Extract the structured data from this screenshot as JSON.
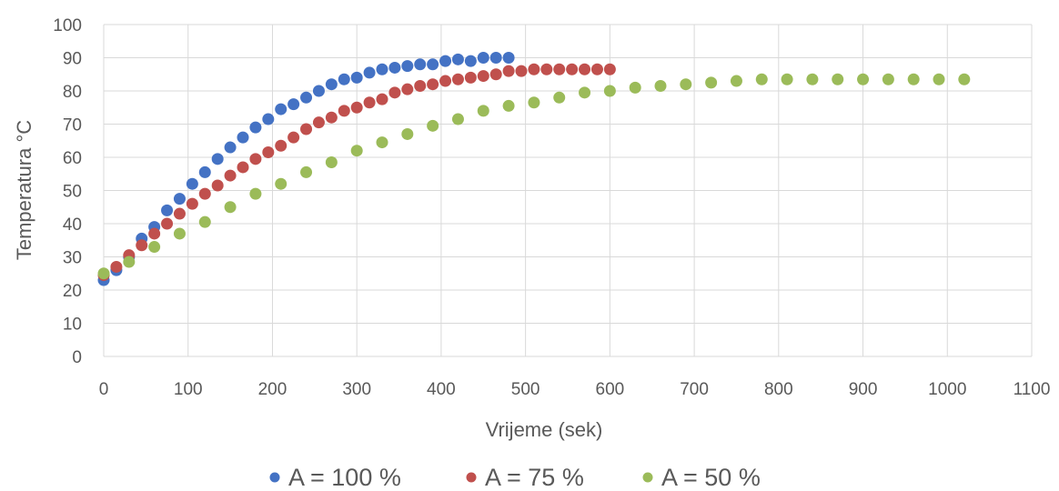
{
  "chart_data": {
    "type": "scatter",
    "title": "",
    "xlabel": "Vrijeme (sek)",
    "ylabel": "Temperatura °C",
    "xlim": [
      0,
      1100
    ],
    "ylim": [
      0,
      100
    ],
    "xticks": [
      0,
      100,
      200,
      300,
      400,
      500,
      600,
      700,
      800,
      900,
      1000,
      1100
    ],
    "yticks": [
      0,
      10,
      20,
      30,
      40,
      50,
      60,
      70,
      80,
      90,
      100
    ],
    "grid": true,
    "legend_position": "bottom",
    "series": [
      {
        "name": "A = 100 %",
        "color": "#4472c4",
        "x": [
          0,
          15,
          30,
          45,
          60,
          75,
          90,
          105,
          120,
          135,
          150,
          165,
          180,
          195,
          210,
          225,
          240,
          255,
          270,
          285,
          300,
          315,
          330,
          345,
          360,
          375,
          390,
          405,
          420,
          435,
          450,
          465,
          480
        ],
        "y": [
          23,
          26,
          30,
          35.5,
          39,
          44,
          47.5,
          52,
          55.5,
          59.5,
          63,
          66,
          69,
          71.5,
          74.5,
          76,
          78,
          80,
          82,
          83.5,
          84,
          85.5,
          86.5,
          87,
          87.5,
          88,
          88,
          89,
          89.5,
          89,
          90,
          90,
          90
        ]
      },
      {
        "name": "A = 75 %",
        "color": "#c0504d",
        "x": [
          0,
          15,
          30,
          45,
          60,
          75,
          90,
          105,
          120,
          135,
          150,
          165,
          180,
          195,
          210,
          225,
          240,
          255,
          270,
          285,
          300,
          315,
          330,
          345,
          360,
          375,
          390,
          405,
          420,
          435,
          450,
          465,
          480,
          495,
          510,
          525,
          540,
          555,
          570,
          585,
          600
        ],
        "y": [
          24.5,
          27,
          30.5,
          33.5,
          37,
          40,
          43,
          46,
          49,
          51.5,
          54.5,
          57,
          59.5,
          61.5,
          63.5,
          66,
          68.5,
          70.5,
          72,
          74,
          75,
          76.5,
          77.5,
          79.5,
          80.5,
          81.5,
          82,
          83,
          83.5,
          84,
          84.5,
          85,
          86,
          86,
          86.5,
          86.5,
          86.5,
          86.5,
          86.5,
          86.5,
          86.5
        ]
      },
      {
        "name": "A = 50 %",
        "color": "#9bbb59",
        "x": [
          0,
          30,
          60,
          90,
          120,
          150,
          180,
          210,
          240,
          270,
          300,
          330,
          360,
          390,
          420,
          450,
          480,
          510,
          540,
          570,
          600,
          630,
          660,
          690,
          720,
          750,
          780,
          810,
          840,
          870,
          900,
          930,
          960,
          990,
          1020
        ],
        "y": [
          25,
          28.5,
          33,
          37,
          40.5,
          45,
          49,
          52,
          55.5,
          58.5,
          62,
          64.5,
          67,
          69.5,
          71.5,
          74,
          75.5,
          76.5,
          78,
          79.5,
          80,
          81,
          81.5,
          82,
          82.5,
          83,
          83.5,
          83.5,
          83.5,
          83.5,
          83.5,
          83.5,
          83.5,
          83.5,
          83.5
        ]
      }
    ]
  }
}
